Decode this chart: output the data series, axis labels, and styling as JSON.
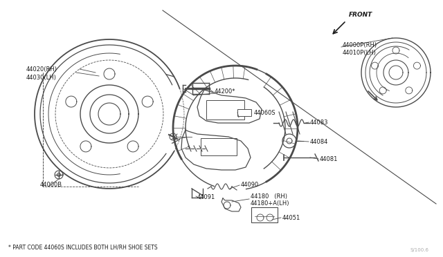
{
  "bg_color": "#ffffff",
  "line_color": "#4a4a4a",
  "text_color": "#1a1a1a",
  "fig_width": 6.4,
  "fig_height": 3.72,
  "dpi": 100,
  "footnote": "* PART CODE 44060S INCLUDES BOTH LH/RH SHOE SETS",
  "watermark": "S/100.6",
  "front_label": "FRONT"
}
